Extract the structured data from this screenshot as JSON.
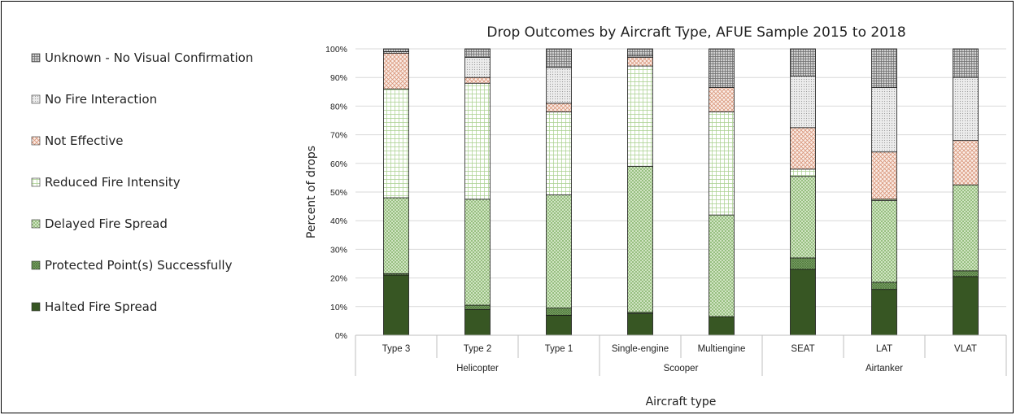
{
  "chart_data": {
    "type": "bar",
    "stacked": true,
    "title": "Drop Outcomes by Aircraft Type,  AFUE Sample 2015 to 2018",
    "xlabel": "Aircraft type",
    "ylabel": "Percent of drops",
    "ylim": [
      0,
      100
    ],
    "yticks": [
      "0%",
      "10%",
      "20%",
      "30%",
      "40%",
      "50%",
      "60%",
      "70%",
      "80%",
      "90%",
      "100%"
    ],
    "grid": true,
    "legend_position": "left",
    "categories": [
      "Type 3",
      "Type 2",
      "Type 1",
      "Single-engine",
      "Multiengine",
      "SEAT",
      "LAT",
      "VLAT"
    ],
    "groups": [
      {
        "label": "Helicopter",
        "categories": [
          "Type 3",
          "Type 2",
          "Type 1"
        ]
      },
      {
        "label": "Scooper",
        "categories": [
          "Single-engine",
          "Multiengine"
        ]
      },
      {
        "label": "Airtanker",
        "categories": [
          "SEAT",
          "LAT",
          "VLAT"
        ]
      }
    ],
    "series": [
      {
        "name": "Halted Fire Spread",
        "color": "#375623",
        "pattern": "solid",
        "values": [
          21,
          9,
          7,
          7.5,
          6.5,
          23,
          16,
          20.5
        ]
      },
      {
        "name": "Protected Point(s) Successfully",
        "color": "#6f9a5c",
        "pattern": "dense-crosshatch",
        "values": [
          0.5,
          1.5,
          2.5,
          0.5,
          0,
          4,
          2.5,
          2
        ]
      },
      {
        "name": "Delayed Fire Spread",
        "color": "#a9d08e",
        "pattern": "crosshatch",
        "values": [
          26.5,
          37,
          39.5,
          51,
          35.5,
          28.5,
          28.5,
          30
        ]
      },
      {
        "name": "Reduced Fire Intensity",
        "color": "#c6e0b4",
        "pattern": "grid",
        "values": [
          38,
          40.5,
          29,
          35,
          36,
          2.5,
          0.5,
          0
        ]
      },
      {
        "name": "Not Effective",
        "color": "#d9967a",
        "pattern": "zigzag",
        "values": [
          12.5,
          2,
          3,
          3,
          8.5,
          14.5,
          16.5,
          15.5
        ]
      },
      {
        "name": "No Fire Interaction",
        "color": "#a6a6a6",
        "pattern": "fine-dots",
        "values": [
          0.5,
          7,
          12.5,
          0.5,
          0,
          18,
          22.5,
          22
        ]
      },
      {
        "name": "Unknown - No Visual Confirmation",
        "color": "#7f7f7f",
        "pattern": "dark-grid",
        "values": [
          1,
          3,
          6.5,
          2.5,
          13.5,
          9.5,
          13.5,
          10
        ]
      }
    ],
    "legend": [
      {
        "symbol": "⊞",
        "name": "Unknown - No Visual Confirmation"
      },
      {
        "symbol": "▧",
        "name": "No Fire Interaction"
      },
      {
        "symbol": "⊠",
        "name": "Not Effective"
      },
      {
        "symbol": "⊟",
        "name": "Reduced Fire Intensity"
      },
      {
        "symbol": "▩",
        "name": "Delayed Fire Spread"
      },
      {
        "symbol": "▩",
        "name": "Protected Point(s) Successfully"
      },
      {
        "symbol": "■",
        "name": "Halted Fire Spread"
      }
    ]
  }
}
